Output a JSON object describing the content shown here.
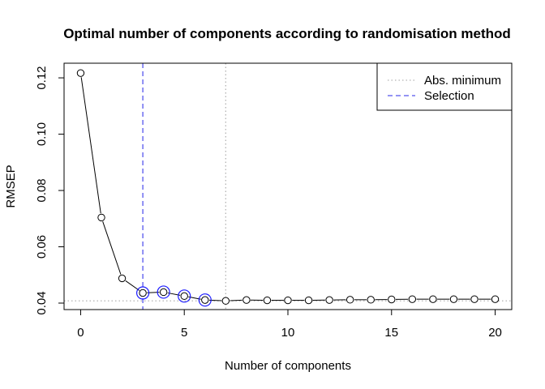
{
  "chart_data": {
    "type": "line",
    "title": "Optimal number of components according to randomisation method",
    "xlabel": "Number of components",
    "ylabel": "RMSEP",
    "xlim": [
      -0.8,
      20.8
    ],
    "ylim": [
      0.0377,
      0.1252
    ],
    "x_ticks": [
      0,
      5,
      10,
      15,
      20
    ],
    "y_ticks": [
      0.04,
      0.06,
      0.08,
      0.1,
      0.12
    ],
    "y_tick_labels": [
      "0.04",
      "0.06",
      "0.08",
      "0.10",
      "0.12"
    ],
    "series": [
      {
        "x": [
          0,
          1,
          2,
          3,
          4,
          5,
          6,
          7,
          8,
          9,
          10,
          11,
          12,
          13,
          14,
          15,
          16,
          17,
          18,
          19,
          20
        ],
        "y": [
          0.1217,
          0.0704,
          0.0488,
          0.0436,
          0.0439,
          0.0425,
          0.0411,
          0.0408,
          0.0411,
          0.041,
          0.041,
          0.041,
          0.0411,
          0.0412,
          0.0412,
          0.0413,
          0.0414,
          0.0414,
          0.0414,
          0.0414,
          0.0414
        ]
      }
    ],
    "highlighted_x": [
      3,
      4,
      5,
      6
    ],
    "reference_lines": {
      "abs_minimum": {
        "x": 7,
        "y": 0.0408,
        "style": "dotted",
        "color": "#b3b3b3"
      },
      "selection": {
        "x": 3,
        "style": "dashed",
        "color": "#5555ee"
      }
    },
    "legend": {
      "placement": "top-right",
      "entries": [
        {
          "label": "Abs. minimum",
          "style": "dotted",
          "color": "#b3b3b3"
        },
        {
          "label": "Selection",
          "style": "dashed",
          "color": "#5555ee"
        }
      ]
    },
    "colors": {
      "highlight_ring": "#1a1aff",
      "line": "#000000"
    },
    "grid": false
  }
}
